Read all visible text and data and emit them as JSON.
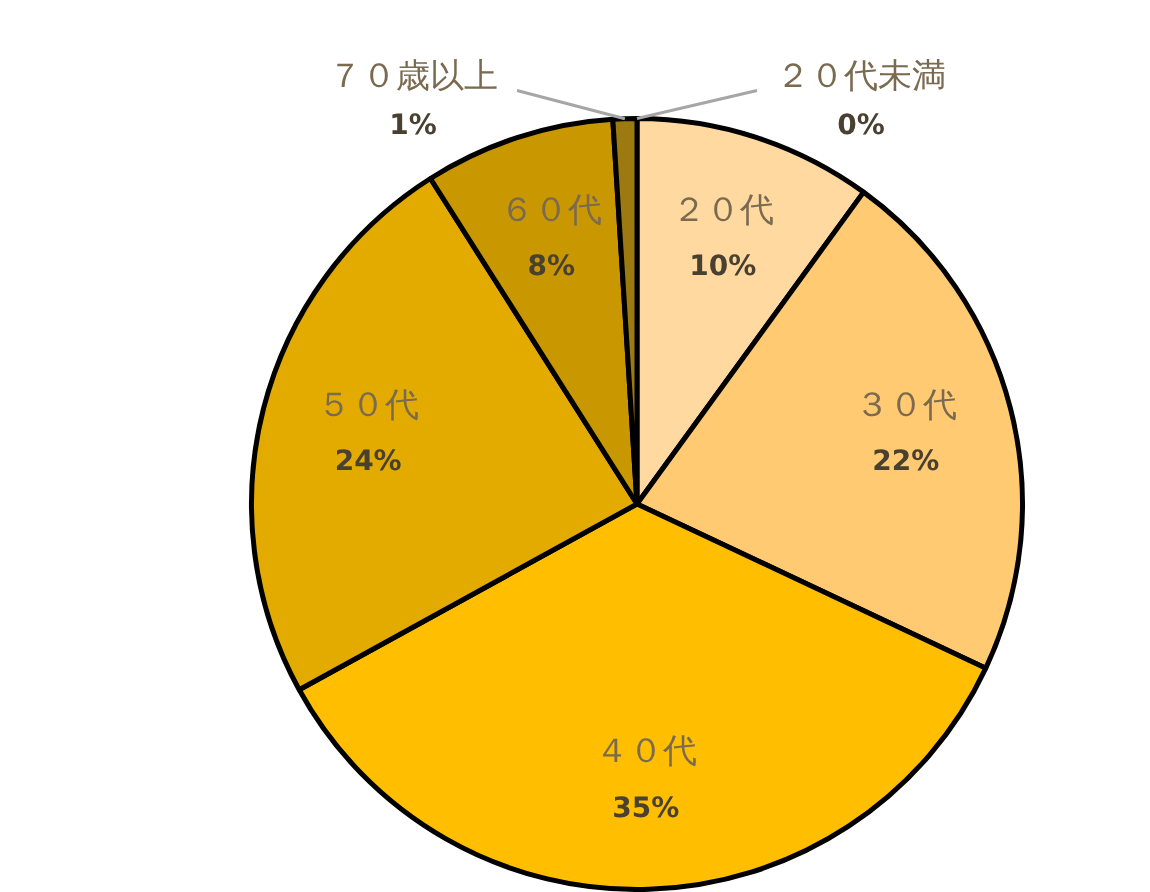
{
  "chart_data": {
    "type": "pie",
    "categories": [
      "２０代未満",
      "２０代",
      "３０代",
      "４０代",
      "５０代",
      "６０代",
      "７０歳以上"
    ],
    "values": [
      0,
      10,
      22,
      35,
      24,
      8,
      1
    ],
    "value_labels": [
      "0%",
      "10%",
      "22%",
      "35%",
      "24%",
      "8%",
      "1%"
    ],
    "colors": [
      "#ffe6c0",
      "#ffd9a0",
      "#ffca72",
      "#ffbf00",
      "#e3ab00",
      "#c99700",
      "#9c7a10"
    ],
    "legend": false
  }
}
